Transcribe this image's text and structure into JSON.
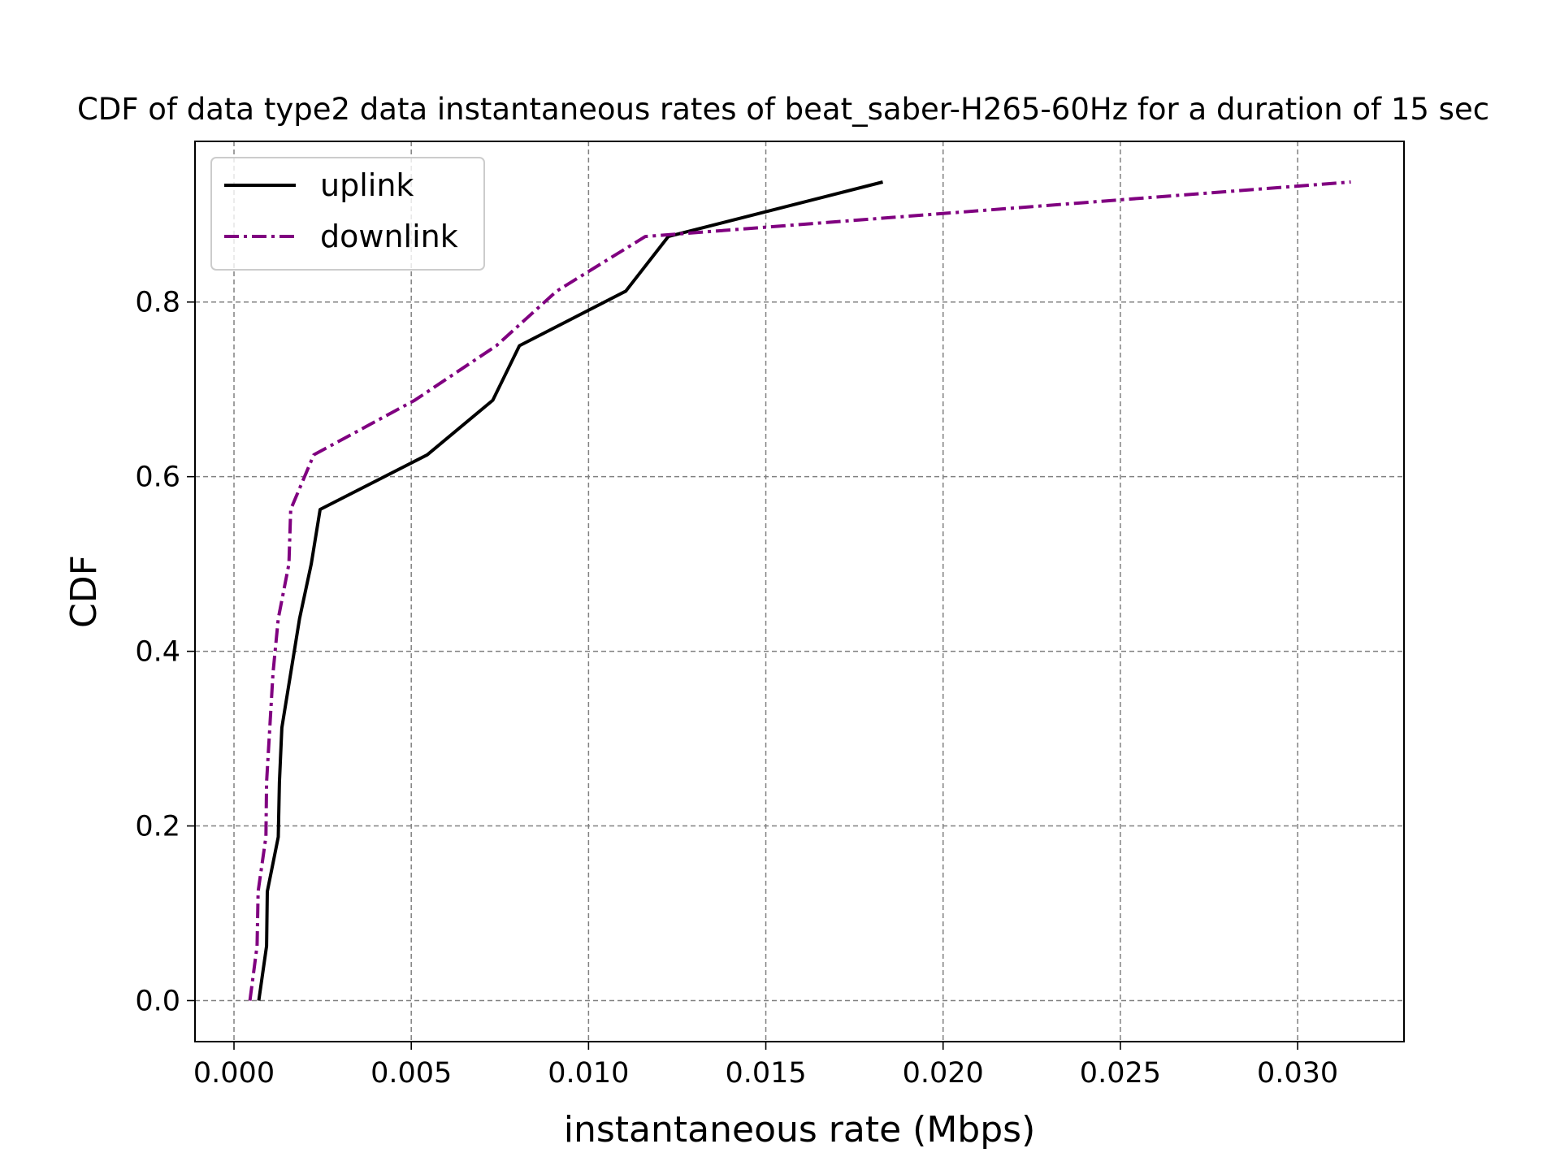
{
  "chart_data": {
    "type": "line",
    "title": "CDF of data type2 data instantaneous rates of beat_saber-H265-60Hz for a duration of 15 sec",
    "xlabel": "instantaneous rate (Mbps)",
    "ylabel": "CDF",
    "xlim": [
      -0.0011,
      0.033
    ],
    "ylim": [
      -0.047,
      0.984
    ],
    "grid": true,
    "legend_position": "upper-left",
    "x_ticks": [
      0.0,
      0.005,
      0.01,
      0.015,
      0.02,
      0.025,
      0.03
    ],
    "x_tick_labels": [
      "0.000",
      "0.005",
      "0.010",
      "0.015",
      "0.020",
      "0.025",
      "0.030"
    ],
    "y_ticks": [
      0.0,
      0.2,
      0.4,
      0.6,
      0.8
    ],
    "y_tick_labels": [
      "0.0",
      "0.2",
      "0.4",
      "0.6",
      "0.8"
    ],
    "series": [
      {
        "name": "uplink",
        "color": "#000000",
        "style": "solid",
        "x": [
          0.0007,
          0.00092,
          0.00094,
          0.00125,
          0.00128,
          0.00135,
          0.00185,
          0.00218,
          0.00243,
          0.00545,
          0.0073,
          0.00805,
          0.01105,
          0.01225,
          0.0183
        ],
        "y": [
          0.0,
          0.0625,
          0.125,
          0.1875,
          0.25,
          0.3125,
          0.4375,
          0.5,
          0.5625,
          0.625,
          0.6875,
          0.75,
          0.8125,
          0.875,
          0.9375
        ]
      },
      {
        "name": "downlink",
        "color": "#800080",
        "style": "dashdot",
        "x": [
          0.00045,
          0.00065,
          0.00068,
          0.0009,
          0.00092,
          0.0011,
          0.00125,
          0.00155,
          0.0016,
          0.00225,
          0.0051,
          0.0074,
          0.0091,
          0.0116,
          0.0315
        ],
        "y": [
          0.0,
          0.0625,
          0.125,
          0.1875,
          0.25,
          0.375,
          0.4375,
          0.5,
          0.5625,
          0.625,
          0.6875,
          0.75,
          0.8125,
          0.875,
          0.9375
        ]
      }
    ]
  }
}
